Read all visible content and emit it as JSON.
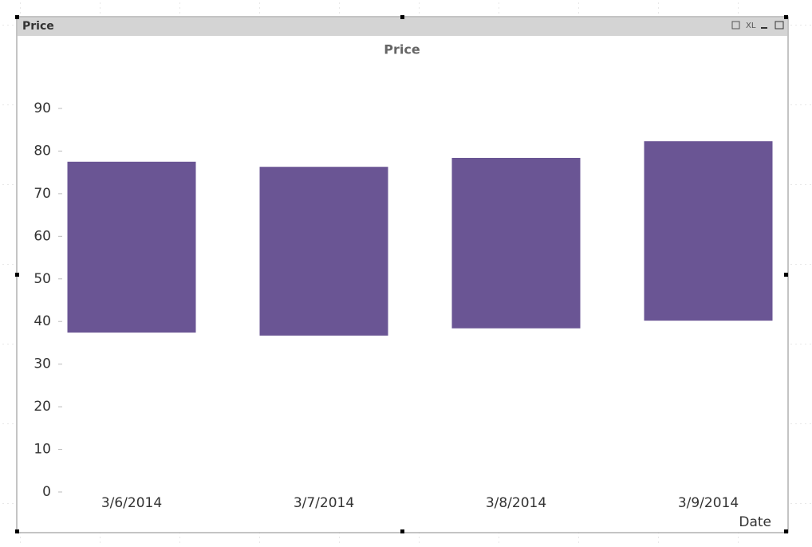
{
  "window": {
    "caption": "Price",
    "xl_button": "XL"
  },
  "chart_data": {
    "type": "floating_bar",
    "title": "Price",
    "x_label": "Date",
    "categories": [
      "3/6/2014",
      "3/7/2014",
      "3/8/2014",
      "3/9/2014"
    ],
    "low": [
      37.4,
      36.7,
      38.4,
      40.2
    ],
    "high": [
      77.5,
      76.3,
      78.4,
      82.3
    ],
    "color": "#6a5594",
    "ylim": [
      0,
      90
    ],
    "yticks": [
      0,
      10,
      20,
      30,
      40,
      50,
      60,
      70,
      80,
      90
    ],
    "grid": false
  }
}
